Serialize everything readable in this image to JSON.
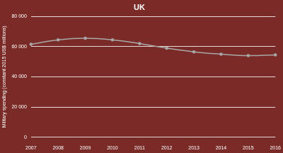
{
  "chart_data": {
    "type": "line",
    "title": "UK",
    "y_label": "Military spending (constant 2015 US$ millions)",
    "categories": [
      "2007",
      "2008",
      "2009",
      "2010",
      "2011",
      "2012",
      "2013",
      "2014",
      "2015",
      "2016"
    ],
    "series": [
      {
        "name": "UK",
        "color": "#a8a8a8",
        "values": [
          61500,
          64500,
          65500,
          64500,
          62000,
          59000,
          56500,
          55000,
          54000,
          54500
        ]
      }
    ],
    "marker": "circle",
    "ylim": [
      0,
      80000
    ],
    "yticks": [
      0,
      {
        "value": 20000,
        "label": "20 000"
      },
      {
        "value": 40000,
        "label": "40 000"
      },
      {
        "value": 60000,
        "label": "60 000"
      },
      {
        "value": 80000,
        "label": "80 000"
      }
    ],
    "grid": true
  }
}
